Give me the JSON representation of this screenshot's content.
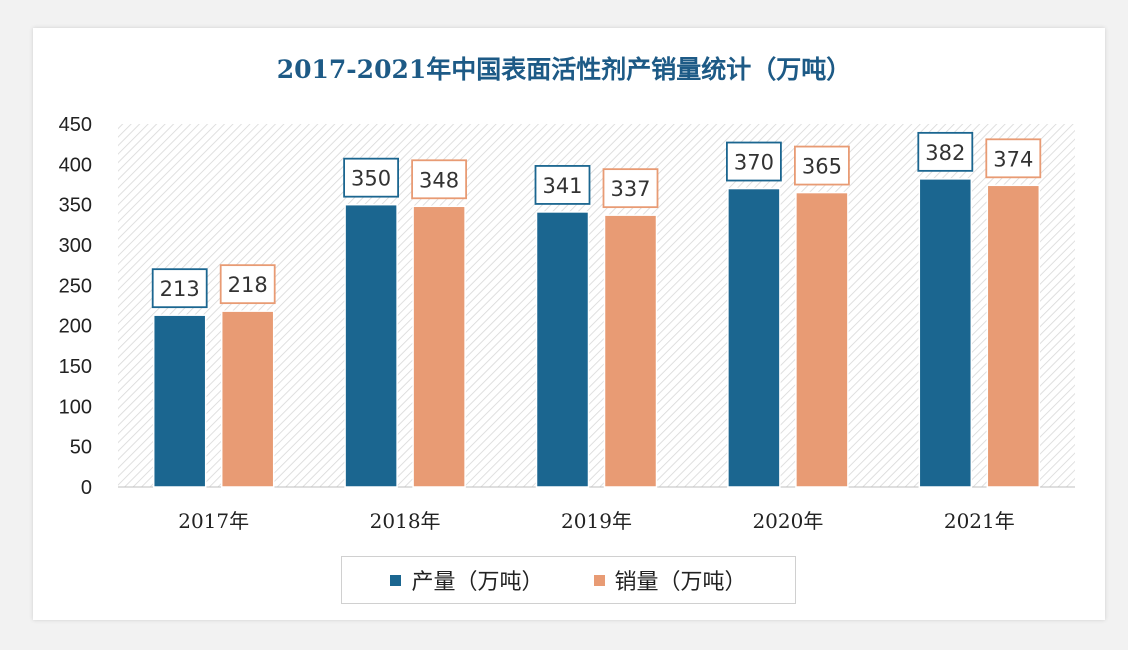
{
  "chart_data": {
    "type": "bar",
    "title": "2017-2021年中国表面活性剂产销量统计（万吨）",
    "categories": [
      "2017年",
      "2018年",
      "2019年",
      "2020年",
      "2021年"
    ],
    "series": [
      {
        "name": "产量（万吨）",
        "color": "#1b6690",
        "values": [
          213,
          350,
          341,
          370,
          382
        ]
      },
      {
        "name": "销量（万吨）",
        "color": "#e89b74",
        "values": [
          218,
          348,
          337,
          365,
          374
        ]
      }
    ],
    "ylim": [
      0,
      450
    ],
    "yticks": [
      0,
      50,
      100,
      150,
      200,
      250,
      300,
      350,
      400,
      450
    ],
    "xlabel": "",
    "ylabel": "",
    "grid": false,
    "data_labels": true,
    "legend": "bottom"
  }
}
